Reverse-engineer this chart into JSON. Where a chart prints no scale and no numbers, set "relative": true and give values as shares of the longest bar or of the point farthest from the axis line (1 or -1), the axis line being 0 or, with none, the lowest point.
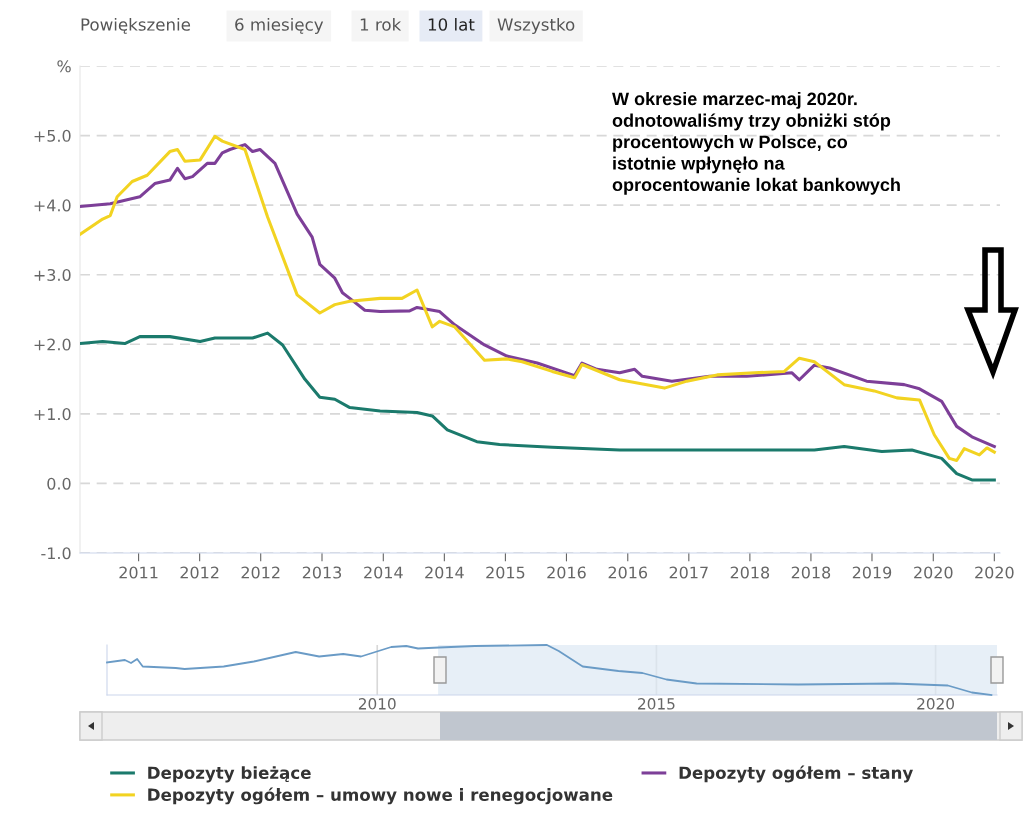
{
  "chart_data": [
    {
      "type": "line",
      "xlim": [
        "2010-10-01",
        "2020-12-24"
      ],
      "ylim": [
        -1,
        6
      ],
      "xticks": [
        {
          "value": "2011-05-27",
          "label": "2011"
        },
        {
          "value": "2012-01-30",
          "label": "2012"
        },
        {
          "value": "2012-10-04",
          "label": "2012"
        },
        {
          "value": "2013-06-10",
          "label": "2013"
        },
        {
          "value": "2014-02-14",
          "label": "2014"
        },
        {
          "value": "2014-10-20",
          "label": "2014"
        },
        {
          "value": "2015-06-25",
          "label": "2015"
        },
        {
          "value": "2016-02-28",
          "label": "2016"
        },
        {
          "value": "2016-11-03",
          "label": "2016"
        },
        {
          "value": "2017-07-09",
          "label": "2017"
        },
        {
          "value": "2018-03-14",
          "label": "2018"
        },
        {
          "value": "2018-11-17",
          "label": "2018"
        },
        {
          "value": "2019-07-23",
          "label": "2019"
        },
        {
          "value": "2020-03-28",
          "label": "2020"
        },
        {
          "value": "2020-12-01",
          "label": "2020"
        }
      ],
      "yticks": [
        {
          "value": -1,
          "label": "-1.0"
        },
        {
          "value": 0,
          "label": "0.0"
        },
        {
          "value": 1,
          "label": "+1.0"
        },
        {
          "value": 2,
          "label": "+2.0"
        },
        {
          "value": 3,
          "label": "+3.0"
        },
        {
          "value": 4,
          "label": "+4.0"
        },
        {
          "value": 5,
          "label": "+5.0"
        },
        {
          "value": 6,
          "label": "%"
        }
      ],
      "grid": "y",
      "legend": "bottom",
      "annotations": [
        "Powiększenie",
        "6 miesięcy",
        "1 rok",
        "10 lat",
        "Wszystko",
        "W okresie marzec-maj 2020r.\nodnotowaliśmy trzy obniżki stóp\nprocentowych w Polsce, co\nistotnie wpłynęło na\noprocentowanie lokat bankowych"
      ],
      "series": [
        {
          "name": "Depozyty bieżące",
          "color": "#1b7a6c",
          "x": [
            "2010-10",
            "2011-01",
            "2011-04",
            "2011-06",
            "2011-10",
            "2012-02",
            "2012-04",
            "2012-09",
            "2012-11",
            "2013-01",
            "2013-04",
            "2013-06",
            "2013-08",
            "2013-10",
            "2014-02",
            "2014-07",
            "2014-09",
            "2014-11",
            "2015-03",
            "2015-06",
            "2015-11",
            "2016-01",
            "2016-10",
            "2017-07",
            "2018-03",
            "2018-12",
            "2019-04",
            "2019-09",
            "2020-01",
            "2020-05",
            "2020-07",
            "2020-09",
            "2020-12"
          ],
          "values": [
            2.01,
            2.04,
            2.01,
            2.11,
            2.11,
            2.04,
            2.09,
            2.09,
            2.16,
            1.99,
            1.5,
            1.24,
            1.21,
            1.09,
            1.04,
            1.02,
            0.97,
            0.77,
            0.6,
            0.56,
            0.53,
            0.52,
            0.48,
            0.48,
            0.48,
            0.48,
            0.53,
            0.46,
            0.48,
            0.36,
            0.14,
            0.05,
            0.05
          ]
        },
        {
          "name": "Depozyty ogółem – stany",
          "color": "#7d3f98",
          "x": [
            "2010-10",
            "2011-02",
            "2011-06",
            "2011-08",
            "2011-10",
            "2011-11",
            "2011-12",
            "2012-01",
            "2012-03",
            "2012-04",
            "2012-05",
            "2012-06",
            "2012-08",
            "2012-09",
            "2012-10",
            "2012-12",
            "2013-03",
            "2013-05",
            "2013-06",
            "2013-08",
            "2013-09",
            "2013-10",
            "2013-12",
            "2014-02",
            "2014-06",
            "2014-07",
            "2014-10",
            "2014-12",
            "2015-04",
            "2015-07",
            "2015-11",
            "2016-04",
            "2016-05",
            "2016-07",
            "2016-10",
            "2016-12",
            "2017-01",
            "2017-05",
            "2017-10",
            "2018-03",
            "2018-09",
            "2018-10",
            "2018-12",
            "2019-02",
            "2019-07",
            "2019-12",
            "2020-02",
            "2020-05",
            "2020-07",
            "2020-09",
            "2020-12"
          ],
          "values": [
            3.98,
            4.02,
            4.12,
            4.31,
            4.36,
            4.53,
            4.38,
            4.41,
            4.6,
            4.6,
            4.75,
            4.8,
            4.87,
            4.77,
            4.8,
            4.6,
            3.87,
            3.54,
            3.15,
            2.95,
            2.74,
            2.66,
            2.49,
            2.47,
            2.48,
            2.53,
            2.47,
            2.28,
            1.99,
            1.83,
            1.73,
            1.55,
            1.73,
            1.64,
            1.59,
            1.64,
            1.54,
            1.47,
            1.54,
            1.54,
            1.59,
            1.49,
            1.7,
            1.66,
            1.47,
            1.42,
            1.36,
            1.18,
            0.82,
            0.67,
            0.53
          ]
        },
        {
          "name": "Depozyty ogółem – umowy nowe i renegocjowane",
          "color": "#f2d321",
          "x": [
            "2010-10",
            "2011-01",
            "2011-02",
            "2011-03",
            "2011-05",
            "2011-07",
            "2011-10",
            "2011-11",
            "2011-12",
            "2012-02",
            "2012-04",
            "2012-05",
            "2012-08",
            "2012-11",
            "2013-03",
            "2013-06",
            "2013-08",
            "2013-10",
            "2014-02",
            "2014-05",
            "2014-07",
            "2014-09",
            "2014-10",
            "2014-12",
            "2015-04",
            "2015-07",
            "2015-09",
            "2016-01",
            "2016-04",
            "2016-05",
            "2016-10",
            "2017-04",
            "2017-07",
            "2017-11",
            "2018-04",
            "2018-08",
            "2018-10",
            "2018-12",
            "2019-04",
            "2019-08",
            "2019-11",
            "2020-02",
            "2020-04",
            "2020-06",
            "2020-07",
            "2020-08",
            "2020-10",
            "2020-11",
            "2020-12"
          ],
          "values": [
            3.58,
            3.8,
            3.85,
            4.12,
            4.34,
            4.43,
            4.77,
            4.8,
            4.63,
            4.65,
            4.99,
            4.92,
            4.8,
            3.83,
            2.71,
            2.45,
            2.57,
            2.62,
            2.66,
            2.66,
            2.78,
            2.25,
            2.33,
            2.25,
            1.77,
            1.79,
            1.75,
            1.61,
            1.52,
            1.71,
            1.49,
            1.37,
            1.47,
            1.56,
            1.59,
            1.61,
            1.8,
            1.75,
            1.42,
            1.33,
            1.23,
            1.2,
            0.7,
            0.36,
            0.33,
            0.5,
            0.41,
            0.51,
            0.45
          ]
        }
      ]
    },
    {
      "type": "line",
      "relative": true,
      "xlim": [
        2005.16,
        2021.1
      ],
      "xticks": [
        2010,
        2015,
        2020
      ],
      "grid": "x",
      "tick_labels": "x",
      "bands": [
        {
          "axis": "x",
          "from": 2011.09,
          "to": 2021.1,
          "color": "#dde8f3"
        }
      ],
      "series": [
        {
          "color": "#6a9bc6",
          "x": [
            2005.16,
            2005.48,
            2005.59,
            2005.7,
            2005.8,
            2006.39,
            2006.55,
            2007.25,
            2007.79,
            2008.54,
            2008.96,
            2009.39,
            2009.71,
            2010.25,
            2010.52,
            2010.73,
            2011.11,
            2011.75,
            2013.04,
            2013.25,
            2013.68,
            2014.32,
            2014.75,
            2015.18,
            2015.72,
            2017.54,
            2019.25,
            2020.22,
            2020.65,
            2021.0
          ],
          "values": [
            0.65,
            0.7,
            0.64,
            0.72,
            0.57,
            0.54,
            0.52,
            0.57,
            0.67,
            0.86,
            0.77,
            0.82,
            0.77,
            0.96,
            0.98,
            0.93,
            0.95,
            0.98,
            1.0,
            0.88,
            0.57,
            0.48,
            0.44,
            0.31,
            0.23,
            0.21,
            0.23,
            0.19,
            0.05,
            0.0
          ]
        }
      ]
    }
  ]
}
